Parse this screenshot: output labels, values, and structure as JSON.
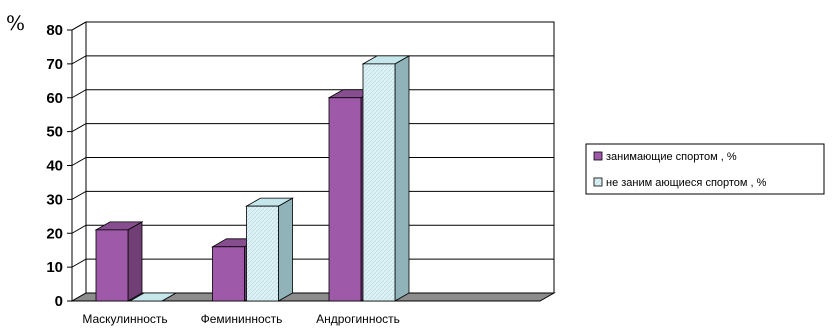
{
  "chart_data": {
    "type": "bar",
    "style": "3d-clustered-column",
    "unit_label": "%",
    "categories": [
      "Маскулинность",
      "Фемининность",
      "Андрогинность"
    ],
    "series": [
      {
        "name": "занимающие спортом , %",
        "color": "#9e5aa8",
        "values": [
          21,
          16,
          60
        ]
      },
      {
        "name": "не заним ающиеся спортом , %",
        "color": "#d6eef2",
        "hatched": true,
        "values": [
          0,
          28,
          70
        ]
      }
    ],
    "ylim": [
      0,
      80
    ],
    "yticks": [
      0,
      10,
      20,
      30,
      40,
      50,
      60,
      70,
      80
    ],
    "grid": true,
    "legend": "right"
  }
}
